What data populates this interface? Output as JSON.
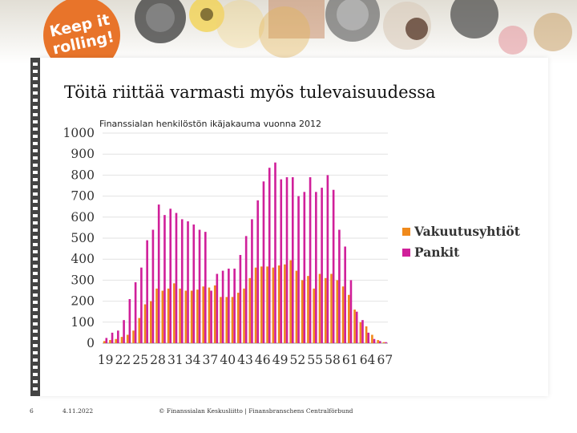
{
  "banner": {
    "logo_text": "Keep it rolling!"
  },
  "slide": {
    "title": "Töitä riittää varmasti myös tulevaisuudessa",
    "footer": {
      "page_number": "6",
      "date": "4.11.2022",
      "copyright": "© Finanssialan Keskusliitto | Finansbranschens Centralförbund"
    }
  },
  "colors": {
    "series_vakuutusyhtiot": "#f08a1c",
    "series_pankit": "#d0209a",
    "logo": "#e8742a"
  },
  "chart_data": {
    "type": "bar",
    "title": "Finanssialan henkilöstön ikäjakauma vuonna 2012",
    "xlabel": "",
    "ylabel": "",
    "ylim": [
      0,
      1000
    ],
    "y_ticks": [
      "1000",
      "900",
      "800",
      "700",
      "600",
      "500",
      "400",
      "300",
      "200",
      "100",
      "0"
    ],
    "x_tick_labels": [
      "19",
      "22",
      "25",
      "28",
      "31",
      "34",
      "37",
      "40",
      "43",
      "46",
      "49",
      "52",
      "55",
      "58",
      "61",
      "64",
      "67"
    ],
    "categories": [
      19,
      20,
      21,
      22,
      23,
      24,
      25,
      26,
      27,
      28,
      29,
      30,
      31,
      32,
      33,
      34,
      35,
      36,
      37,
      38,
      39,
      40,
      41,
      42,
      43,
      44,
      45,
      46,
      47,
      48,
      49,
      50,
      51,
      52,
      53,
      54,
      55,
      56,
      57,
      58,
      59,
      60,
      61,
      62,
      63,
      64,
      65,
      66,
      67
    ],
    "legend_position": "right",
    "grid": true,
    "series": [
      {
        "name": "Vakuutusyhtiöt",
        "values": [
          10,
          15,
          20,
          30,
          40,
          60,
          120,
          185,
          200,
          260,
          250,
          260,
          285,
          260,
          250,
          250,
          255,
          270,
          265,
          275,
          220,
          220,
          220,
          240,
          260,
          310,
          360,
          365,
          365,
          360,
          370,
          375,
          395,
          345,
          300,
          320,
          260,
          330,
          310,
          330,
          300,
          270,
          230,
          160,
          100,
          80,
          40,
          15,
          5
        ]
      },
      {
        "name": "Pankit",
        "values": [
          25,
          50,
          60,
          110,
          210,
          290,
          360,
          490,
          540,
          660,
          610,
          640,
          620,
          590,
          580,
          565,
          540,
          530,
          250,
          330,
          345,
          355,
          355,
          420,
          510,
          590,
          680,
          770,
          835,
          860,
          780,
          790,
          790,
          700,
          720,
          790,
          720,
          740,
          800,
          730,
          540,
          460,
          300,
          150,
          110,
          50,
          20,
          10,
          5
        ]
      }
    ]
  }
}
